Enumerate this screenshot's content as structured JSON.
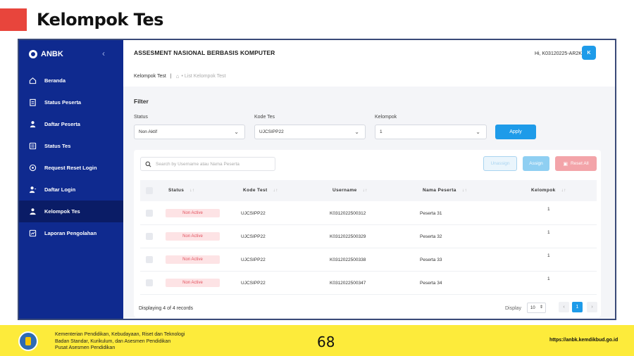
{
  "slide": {
    "title": "Kelompok Tes",
    "page_number": "68"
  },
  "sidebar": {
    "brand": "ANBK",
    "items": [
      {
        "label": "Beranda",
        "icon": "home-icon",
        "active": false
      },
      {
        "label": "Status Peserta",
        "icon": "clipboard-icon",
        "active": false
      },
      {
        "label": "Daftar Peserta",
        "icon": "user-icon",
        "active": false
      },
      {
        "label": "Status Tes",
        "icon": "list-icon",
        "active": false
      },
      {
        "label": "Request Reset Login",
        "icon": "reset-icon",
        "active": false
      },
      {
        "label": "Daftar Login",
        "icon": "user-login-icon",
        "active": false
      },
      {
        "label": "Kelompok Tes",
        "icon": "group-icon",
        "active": true
      },
      {
        "label": "Laporan Pengolahan",
        "icon": "report-icon",
        "active": false
      }
    ]
  },
  "header": {
    "app_title": "ASSESMENT NASIONAL BERBASIS KOMPUTER",
    "breadcrumb_current": "Kelompok Test",
    "breadcrumb_sub": "List Kelompok Test",
    "user_greeting": "Hi, K03120225-AR2K",
    "avatar_letter": "K"
  },
  "filter": {
    "title": "Filter",
    "status_label": "Status",
    "status_value": "Non Aktif",
    "kode_label": "Kode Tes",
    "kode_value": "UJCSIPP22",
    "kelompok_label": "Kelompok",
    "kelompok_value": "1",
    "apply_label": "Apply"
  },
  "table": {
    "search_placeholder": "Search by Username atau Nama Peserta",
    "unassign_label": "Unassign",
    "assign_label": "Assign",
    "reset_label": "Reset All",
    "columns": [
      "Status",
      "Kode Test",
      "Username",
      "Nama Peserta",
      "Kelompok"
    ],
    "rows": [
      {
        "status": "Non Active",
        "kode": "UJCSIPP22",
        "username": "K0312022500312",
        "nama": "Peserta 31",
        "kelompok": "1"
      },
      {
        "status": "Non Active",
        "kode": "UJCSIPP22",
        "username": "K0312022500329",
        "nama": "Peserta 32",
        "kelompok": "1"
      },
      {
        "status": "Non Active",
        "kode": "UJCSIPP22",
        "username": "K0312022500338",
        "nama": "Peserta 33",
        "kelompok": "1"
      },
      {
        "status": "Non Active",
        "kode": "UJCSIPP22",
        "username": "K0312022500347",
        "nama": "Peserta 34",
        "kelompok": "1"
      }
    ],
    "records_info": "Displaying 4 of 4 records",
    "display_label": "Display",
    "display_value": "10",
    "current_page": "1"
  },
  "banner": {
    "line1": "Kementerian Pendidikan, Kebudayaan, Riset dan Teknologi",
    "line2": "Badan Standar, Kurikulum, dan Asesmen Pendidikan",
    "line3": "Pusat Asesmen Pendidikan",
    "url": "https://anbk.kemdikbud.go.id"
  },
  "colors": {
    "sidebar": "#0f2a8f",
    "accent": "#1e9be9",
    "title_accent": "#e8453c",
    "banner": "#fdeb3b",
    "badge_text": "#e2515d"
  }
}
